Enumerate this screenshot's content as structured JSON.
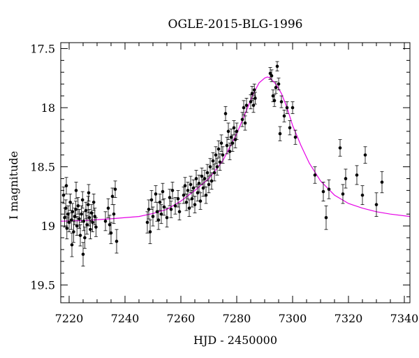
{
  "chart_data": {
    "type": "scatter",
    "title": "OGLE-2015-BLG-1996",
    "xlabel": "HJD - 2450000",
    "ylabel": "I magnitude",
    "xlim": [
      7217,
      7342
    ],
    "ylim": [
      19.65,
      17.45
    ],
    "y_inverted": true,
    "grid": false,
    "x_ticks": [
      7220,
      7240,
      7260,
      7280,
      7300,
      7320,
      7340
    ],
    "y_ticks": [
      17.5,
      18,
      18.5,
      19,
      19.5
    ],
    "colors": {
      "points": "#000000",
      "model": "#e600e6",
      "frame": "#000000"
    },
    "series": [
      {
        "points": [
          [
            7218.0,
            18.74,
            0.07
          ],
          [
            7218.4,
            18.93,
            0.08
          ],
          [
            7218.8,
            18.85,
            0.07
          ],
          [
            7219.2,
            19.02,
            0.09
          ],
          [
            7219.6,
            18.9,
            0.07
          ],
          [
            7220.0,
            18.97,
            0.08
          ],
          [
            7220.4,
            18.8,
            0.07
          ],
          [
            7220.8,
            18.95,
            0.08
          ],
          [
            7221.2,
            18.88,
            0.07
          ],
          [
            7221.6,
            19.05,
            0.09
          ],
          [
            7222.0,
            18.92,
            0.07
          ],
          [
            7222.4,
            18.86,
            0.07
          ],
          [
            7222.8,
            19.0,
            0.08
          ],
          [
            7223.2,
            18.83,
            0.07
          ],
          [
            7223.6,
            18.94,
            0.08
          ],
          [
            7224.0,
            19.08,
            0.09
          ],
          [
            7224.4,
            18.9,
            0.07
          ],
          [
            7224.8,
            18.78,
            0.07
          ],
          [
            7225.2,
            18.96,
            0.08
          ],
          [
            7225.6,
            19.1,
            0.09
          ],
          [
            7226.0,
            18.87,
            0.07
          ],
          [
            7226.4,
            18.99,
            0.08
          ],
          [
            7226.8,
            18.82,
            0.07
          ],
          [
            7227.2,
            18.93,
            0.07
          ],
          [
            7227.6,
            19.03,
            0.08
          ],
          [
            7228.0,
            18.89,
            0.07
          ],
          [
            7228.4,
            18.97,
            0.08
          ],
          [
            7228.8,
            18.8,
            0.07
          ],
          [
            7229.2,
            18.92,
            0.07
          ],
          [
            7229.6,
            19.01,
            0.08
          ],
          [
            7221.0,
            19.16,
            0.1
          ],
          [
            7225.0,
            19.24,
            0.1
          ],
          [
            7222.5,
            18.7,
            0.07
          ],
          [
            7219.0,
            18.66,
            0.07
          ],
          [
            7227.0,
            18.72,
            0.07
          ],
          [
            7233.0,
            18.96,
            0.08
          ],
          [
            7234.0,
            18.85,
            0.08
          ],
          [
            7235.0,
            19.06,
            0.09
          ],
          [
            7236.0,
            18.9,
            0.08
          ],
          [
            7236.5,
            18.69,
            0.07
          ],
          [
            7237.0,
            19.13,
            0.1
          ],
          [
            7234.5,
            18.99,
            0.08
          ],
          [
            7235.5,
            18.75,
            0.07
          ],
          [
            7248.0,
            18.97,
            0.09
          ],
          [
            7248.5,
            18.86,
            0.08
          ],
          [
            7249.0,
            19.05,
            0.1
          ],
          [
            7249.5,
            18.78,
            0.08
          ],
          [
            7250.0,
            18.92,
            0.08
          ],
          [
            7251.0,
            18.73,
            0.07
          ],
          [
            7251.5,
            18.88,
            0.08
          ],
          [
            7252.0,
            18.95,
            0.08
          ],
          [
            7252.5,
            18.8,
            0.07
          ],
          [
            7253.0,
            18.9,
            0.08
          ],
          [
            7253.5,
            18.71,
            0.07
          ],
          [
            7254.0,
            18.84,
            0.07
          ],
          [
            7255.0,
            18.93,
            0.08
          ],
          [
            7256.0,
            18.76,
            0.07
          ],
          [
            7256.5,
            18.86,
            0.07
          ],
          [
            7257.0,
            18.7,
            0.07
          ],
          [
            7258.0,
            18.83,
            0.07
          ],
          [
            7259.0,
            18.77,
            0.07
          ],
          [
            7259.5,
            18.88,
            0.07
          ],
          [
            7261.0,
            18.74,
            0.07
          ],
          [
            7261.5,
            18.66,
            0.07
          ],
          [
            7262.0,
            18.8,
            0.07
          ],
          [
            7262.5,
            18.7,
            0.07
          ],
          [
            7263.0,
            18.85,
            0.07
          ],
          [
            7263.5,
            18.65,
            0.07
          ],
          [
            7264.0,
            18.77,
            0.07
          ],
          [
            7264.5,
            18.68,
            0.07
          ],
          [
            7265.0,
            18.82,
            0.07
          ],
          [
            7265.5,
            18.6,
            0.07
          ],
          [
            7266.0,
            18.72,
            0.07
          ],
          [
            7266.5,
            18.64,
            0.07
          ],
          [
            7267.0,
            18.79,
            0.07
          ],
          [
            7267.5,
            18.58,
            0.07
          ],
          [
            7268.0,
            18.68,
            0.07
          ],
          [
            7268.5,
            18.6,
            0.07
          ],
          [
            7269.0,
            18.74,
            0.07
          ],
          [
            7269.5,
            18.55,
            0.07
          ],
          [
            7270.0,
            18.65,
            0.07
          ],
          [
            7270.5,
            18.5,
            0.07
          ],
          [
            7271.0,
            18.62,
            0.07
          ],
          [
            7271.5,
            18.45,
            0.07
          ],
          [
            7272.0,
            18.55,
            0.07
          ],
          [
            7272.5,
            18.4,
            0.07
          ],
          [
            7273.0,
            18.5,
            0.07
          ],
          [
            7273.5,
            18.35,
            0.07
          ],
          [
            7274.0,
            18.46,
            0.07
          ],
          [
            7274.5,
            18.3,
            0.07
          ],
          [
            7275.0,
            18.4,
            0.07
          ],
          [
            7276.0,
            18.05,
            0.06
          ],
          [
            7276.5,
            18.32,
            0.07
          ],
          [
            7277.0,
            18.2,
            0.07
          ],
          [
            7277.5,
            18.37,
            0.07
          ],
          [
            7278.0,
            18.25,
            0.07
          ],
          [
            7278.5,
            18.3,
            0.07
          ],
          [
            7279.0,
            18.17,
            0.06
          ],
          [
            7279.5,
            18.27,
            0.07
          ],
          [
            7280.0,
            18.2,
            0.07
          ],
          [
            7282.0,
            18.1,
            0.06
          ],
          [
            7282.5,
            18.0,
            0.06
          ],
          [
            7283.0,
            18.13,
            0.06
          ],
          [
            7283.5,
            17.98,
            0.06
          ],
          [
            7285.0,
            17.95,
            0.06
          ],
          [
            7285.5,
            17.88,
            0.06
          ],
          [
            7286.0,
            17.98,
            0.06
          ],
          [
            7286.3,
            17.85,
            0.05
          ],
          [
            7286.6,
            17.92,
            0.05
          ],
          [
            7292.0,
            17.71,
            0.05
          ],
          [
            7292.5,
            17.73,
            0.05
          ],
          [
            7293.0,
            17.9,
            0.05
          ],
          [
            7293.5,
            17.94,
            0.05
          ],
          [
            7294.0,
            17.83,
            0.05
          ],
          [
            7294.5,
            17.65,
            0.04
          ],
          [
            7295.0,
            17.8,
            0.05
          ],
          [
            7295.5,
            18.22,
            0.06
          ],
          [
            7296.0,
            17.95,
            0.05
          ],
          [
            7297.0,
            18.07,
            0.05
          ],
          [
            7298.0,
            18.0,
            0.05
          ],
          [
            7299.0,
            18.17,
            0.06
          ],
          [
            7300.0,
            18.0,
            0.05
          ],
          [
            7301.0,
            18.25,
            0.06
          ],
          [
            7308.0,
            18.57,
            0.07
          ],
          [
            7311.0,
            18.71,
            0.08
          ],
          [
            7312.0,
            18.93,
            0.1
          ],
          [
            7313.0,
            18.69,
            0.08
          ],
          [
            7317.0,
            18.34,
            0.07
          ],
          [
            7318.0,
            18.73,
            0.08
          ],
          [
            7319.0,
            18.6,
            0.08
          ],
          [
            7323.0,
            18.57,
            0.08
          ],
          [
            7325.0,
            18.74,
            0.08
          ],
          [
            7326.0,
            18.4,
            0.07
          ],
          [
            7330.0,
            18.82,
            0.1
          ],
          [
            7332.0,
            18.63,
            0.09
          ]
        ]
      }
    ],
    "model": {
      "x": [
        7217,
        7225,
        7235,
        7245,
        7250,
        7255,
        7260,
        7265,
        7270,
        7275,
        7280,
        7283,
        7286,
        7288,
        7290,
        7291,
        7292,
        7294,
        7296,
        7298,
        7300,
        7303,
        7306,
        7310,
        7315,
        7320,
        7325,
        7330,
        7335,
        7342
      ],
      "y": [
        18.96,
        18.955,
        18.94,
        18.92,
        18.895,
        18.86,
        18.79,
        18.7,
        18.6,
        18.45,
        18.22,
        18.05,
        17.88,
        17.79,
        17.75,
        17.74,
        17.75,
        17.8,
        17.88,
        18.0,
        18.15,
        18.32,
        18.47,
        18.62,
        18.74,
        18.81,
        18.85,
        18.88,
        18.9,
        18.92
      ]
    }
  }
}
